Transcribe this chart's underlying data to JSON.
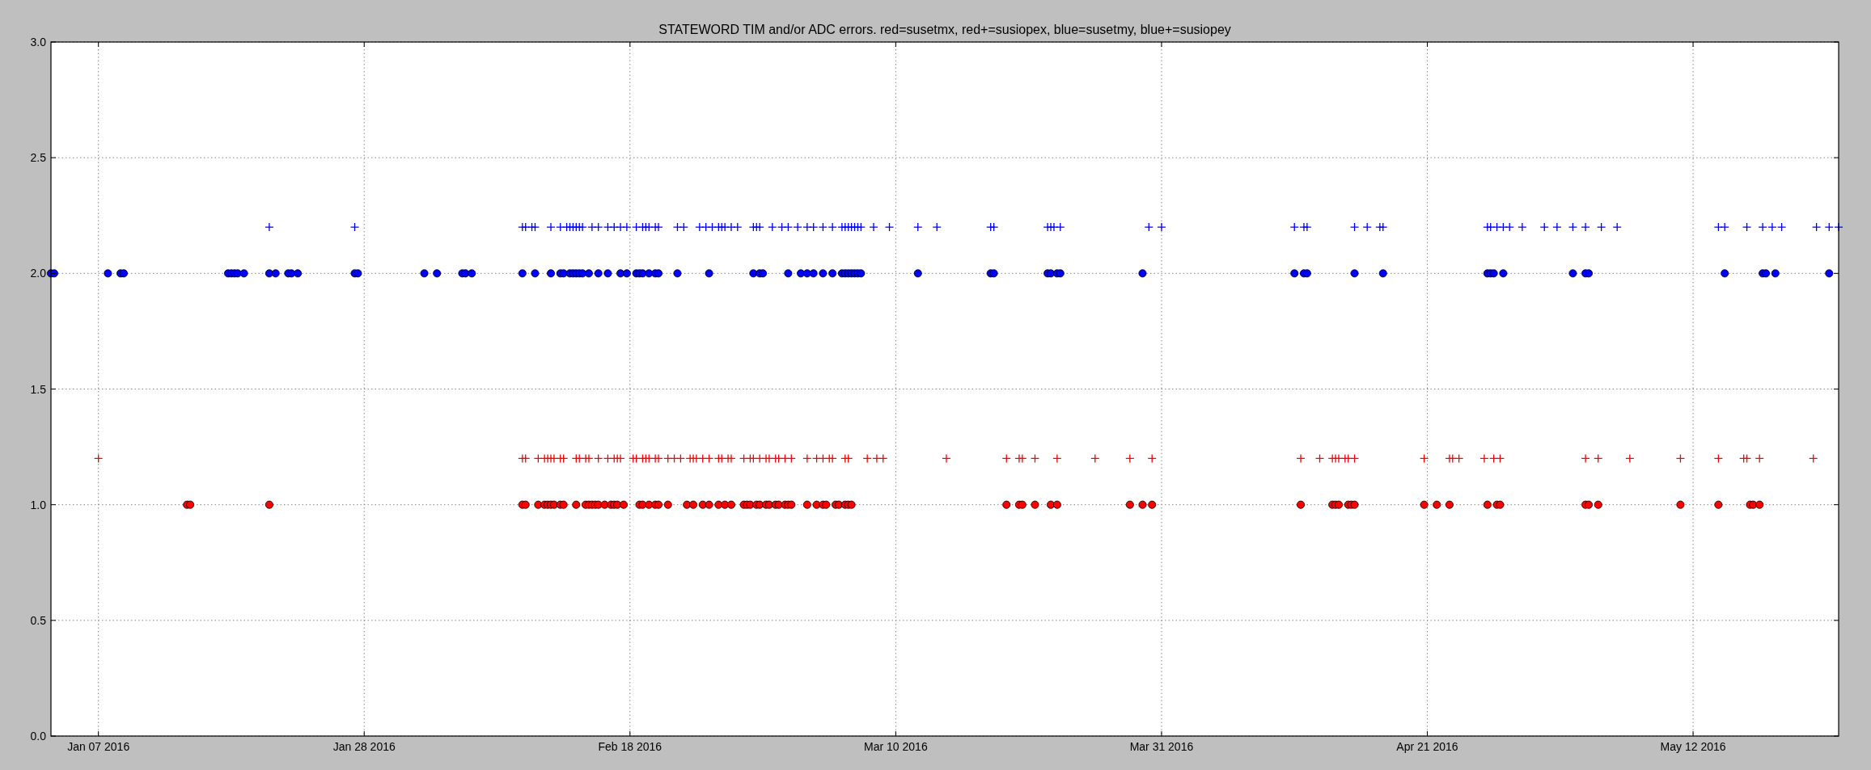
{
  "chart_data": {
    "type": "scatter",
    "title": "STATEWORD TIM and/or ADC errors. red=susetmx, red+=susiopex, blue=susetmy, blue+=susiopey",
    "xlim": [
      "2016-01-03T06:00",
      "2016-05-23T12:00"
    ],
    "xticks": [
      {
        "value": "2016-01-07",
        "label": "Jan 07 2016"
      },
      {
        "value": "2016-01-28",
        "label": "Jan 28 2016"
      },
      {
        "value": "2016-02-18",
        "label": "Feb 18 2016"
      },
      {
        "value": "2016-03-10",
        "label": "Mar 10 2016"
      },
      {
        "value": "2016-03-31",
        "label": "Mar 31 2016"
      },
      {
        "value": "2016-04-21",
        "label": "Apr 21 2016"
      },
      {
        "value": "2016-05-12",
        "label": "May 12 2016"
      }
    ],
    "ylim": [
      0,
      3
    ],
    "yticks": [
      {
        "value": 0,
        "label": "0.0"
      },
      {
        "value": 0.5,
        "label": "0.5"
      },
      {
        "value": 1,
        "label": "1.0"
      },
      {
        "value": 1.5,
        "label": "1.5"
      },
      {
        "value": 2,
        "label": "2.0"
      },
      {
        "value": 2.5,
        "label": "2.5"
      },
      {
        "value": 3,
        "label": "3.0"
      }
    ],
    "grid": true,
    "series": [
      {
        "color": "#ff0000",
        "marker": "circle",
        "x": [
          "2016-01-14T00:00",
          "2016-01-14T06:00",
          "2016-01-20T12:00",
          "2016-02-09T12:00",
          "2016-02-09T18:00",
          "2016-02-10T18:00",
          "2016-02-11T06:00",
          "2016-02-11T12:00",
          "2016-02-11T18:00",
          "2016-02-12T00:00",
          "2016-02-12T12:00",
          "2016-02-12T18:00",
          "2016-02-13T18:00",
          "2016-02-14T12:00",
          "2016-02-14T18:00",
          "2016-02-15T00:00",
          "2016-02-15T06:00",
          "2016-02-15T12:00",
          "2016-02-16T00:00",
          "2016-02-16T12:00",
          "2016-02-16T18:00",
          "2016-02-17T00:00",
          "2016-02-17T12:00",
          "2016-02-18T18:00",
          "2016-02-19T00:00",
          "2016-02-19T12:00",
          "2016-02-20T00:00",
          "2016-02-20T06:00",
          "2016-02-21T00:00",
          "2016-02-22T12:00",
          "2016-02-23T00:00",
          "2016-02-23T18:00",
          "2016-02-24T06:00",
          "2016-02-25T00:00",
          "2016-02-25T12:00",
          "2016-02-26T00:00",
          "2016-02-27T00:00",
          "2016-02-27T06:00",
          "2016-02-27T12:00",
          "2016-02-28T00:00",
          "2016-02-28T06:00",
          "2016-02-28T18:00",
          "2016-02-29T00:00",
          "2016-02-29T12:00",
          "2016-02-29T18:00",
          "2016-03-01T06:00",
          "2016-03-01T12:00",
          "2016-03-01T18:00",
          "2016-03-03T00:00",
          "2016-03-03T18:00",
          "2016-03-04T06:00",
          "2016-03-04T12:00",
          "2016-03-05T06:00",
          "2016-03-05T12:00",
          "2016-03-06T00:00",
          "2016-03-06T06:00",
          "2016-03-06T12:00",
          "2016-03-18T18:00",
          "2016-03-19T18:00",
          "2016-03-20T00:00",
          "2016-03-21T00:00",
          "2016-03-22T06:00",
          "2016-03-22T18:00",
          "2016-03-28T12:00",
          "2016-03-29T12:00",
          "2016-03-30T06:00",
          "2016-04-11T00:00",
          "2016-04-13T12:00",
          "2016-04-13T18:00",
          "2016-04-14T00:00",
          "2016-04-14T18:00",
          "2016-04-15T00:00",
          "2016-04-15T06:00",
          "2016-04-20T18:00",
          "2016-04-21T18:00",
          "2016-04-22T18:00",
          "2016-04-25T18:00",
          "2016-04-26T12:00",
          "2016-04-26T18:00",
          "2016-05-03T12:00",
          "2016-05-03T18:00",
          "2016-05-04T12:00",
          "2016-05-11T00:00",
          "2016-05-14T00:00",
          "2016-05-16T12:00",
          "2016-05-16T18:00",
          "2016-05-17T06:00"
        ],
        "values": [
          1,
          1,
          1,
          1,
          1,
          1,
          1,
          1,
          1,
          1,
          1,
          1,
          1,
          1,
          1,
          1,
          1,
          1,
          1,
          1,
          1,
          1,
          1,
          1,
          1,
          1,
          1,
          1,
          1,
          1,
          1,
          1,
          1,
          1,
          1,
          1,
          1,
          1,
          1,
          1,
          1,
          1,
          1,
          1,
          1,
          1,
          1,
          1,
          1,
          1,
          1,
          1,
          1,
          1,
          1,
          1,
          1,
          1,
          1,
          1,
          1,
          1,
          1,
          1,
          1,
          1,
          1,
          1,
          1,
          1,
          1,
          1,
          1,
          1,
          1,
          1,
          1,
          1,
          1,
          1,
          1,
          1,
          1,
          1,
          1,
          1,
          1
        ]
      },
      {
        "color": "#ff0000",
        "marker": "cross",
        "x": [
          "2016-01-07T00:00",
          "2016-02-09T12:00",
          "2016-02-09T18:00",
          "2016-02-10T18:00",
          "2016-02-11T06:00",
          "2016-02-11T12:00",
          "2016-02-11T18:00",
          "2016-02-12T00:00",
          "2016-02-12T12:00",
          "2016-02-12T18:00",
          "2016-02-13T18:00",
          "2016-02-14T00:00",
          "2016-02-14T12:00",
          "2016-02-14T18:00",
          "2016-02-15T12:00",
          "2016-02-16T06:00",
          "2016-02-16T18:00",
          "2016-02-17T00:00",
          "2016-02-17T06:00",
          "2016-02-18T06:00",
          "2016-02-18T12:00",
          "2016-02-19T00:00",
          "2016-02-19T06:00",
          "2016-02-19T12:00",
          "2016-02-20T00:00",
          "2016-02-20T06:00",
          "2016-02-21T00:00",
          "2016-02-21T12:00",
          "2016-02-22T00:00",
          "2016-02-22T18:00",
          "2016-02-23T00:00",
          "2016-02-23T06:00",
          "2016-02-23T18:00",
          "2016-02-24T06:00",
          "2016-02-25T00:00",
          "2016-02-25T06:00",
          "2016-02-25T18:00",
          "2016-02-26T00:00",
          "2016-02-27T00:00",
          "2016-02-27T12:00",
          "2016-02-27T18:00",
          "2016-02-28T06:00",
          "2016-02-28T18:00",
          "2016-02-29T00:00",
          "2016-02-29T12:00",
          "2016-02-29T18:00",
          "2016-03-01T06:00",
          "2016-03-01T18:00",
          "2016-03-03T00:00",
          "2016-03-03T18:00",
          "2016-03-04T06:00",
          "2016-03-04T18:00",
          "2016-03-05T00:00",
          "2016-03-06T00:00",
          "2016-03-06T06:00",
          "2016-03-07T18:00",
          "2016-03-08T12:00",
          "2016-03-09T00:00",
          "2016-03-14T00:00",
          "2016-03-18T18:00",
          "2016-03-19T18:00",
          "2016-03-20T00:00",
          "2016-03-21T00:00",
          "2016-03-22T18:00",
          "2016-03-25T18:00",
          "2016-03-28T12:00",
          "2016-03-30T06:00",
          "2016-04-11T00:00",
          "2016-04-12T12:00",
          "2016-04-13T12:00",
          "2016-04-13T18:00",
          "2016-04-14T00:00",
          "2016-04-14T12:00",
          "2016-04-14T18:00",
          "2016-04-15T06:00",
          "2016-04-20T18:00",
          "2016-04-22T18:00",
          "2016-04-23T00:00",
          "2016-04-23T12:00",
          "2016-04-25T12:00",
          "2016-04-26T06:00",
          "2016-04-26T18:00",
          "2016-05-03T12:00",
          "2016-05-04T12:00",
          "2016-05-07T00:00",
          "2016-05-11T00:00",
          "2016-05-14T00:00",
          "2016-05-16T00:00",
          "2016-05-16T06:00",
          "2016-05-17T06:00",
          "2016-05-21T12:00"
        ],
        "values": [
          1.2,
          1.2,
          1.2,
          1.2,
          1.2,
          1.2,
          1.2,
          1.2,
          1.2,
          1.2,
          1.2,
          1.2,
          1.2,
          1.2,
          1.2,
          1.2,
          1.2,
          1.2,
          1.2,
          1.2,
          1.2,
          1.2,
          1.2,
          1.2,
          1.2,
          1.2,
          1.2,
          1.2,
          1.2,
          1.2,
          1.2,
          1.2,
          1.2,
          1.2,
          1.2,
          1.2,
          1.2,
          1.2,
          1.2,
          1.2,
          1.2,
          1.2,
          1.2,
          1.2,
          1.2,
          1.2,
          1.2,
          1.2,
          1.2,
          1.2,
          1.2,
          1.2,
          1.2,
          1.2,
          1.2,
          1.2,
          1.2,
          1.2,
          1.2,
          1.2,
          1.2,
          1.2,
          1.2,
          1.2,
          1.2,
          1.2,
          1.2,
          1.2,
          1.2,
          1.2,
          1.2,
          1.2,
          1.2,
          1.2,
          1.2,
          1.2,
          1.2,
          1.2,
          1.2,
          1.2,
          1.2,
          1.2,
          1.2,
          1.2,
          1.2,
          1.2,
          1.2,
          1.2,
          1.2,
          1.2,
          1.2
        ]
      },
      {
        "color": "#0000ff",
        "marker": "circle",
        "x": [
          "2016-01-03T06:00",
          "2016-01-03T12:00",
          "2016-01-07T18:00",
          "2016-01-08T18:00",
          "2016-01-09T00:00",
          "2016-01-17T06:00",
          "2016-01-17T12:00",
          "2016-01-17T18:00",
          "2016-01-18T00:00",
          "2016-01-18T12:00",
          "2016-01-20T12:00",
          "2016-01-21T00:00",
          "2016-01-22T00:00",
          "2016-01-22T06:00",
          "2016-01-22T18:00",
          "2016-01-27T06:00",
          "2016-01-27T12:00",
          "2016-02-01T18:00",
          "2016-02-02T18:00",
          "2016-02-04T18:00",
          "2016-02-05T00:00",
          "2016-02-05T12:00",
          "2016-02-09T12:00",
          "2016-02-10T12:00",
          "2016-02-11T18:00",
          "2016-02-12T12:00",
          "2016-02-12T18:00",
          "2016-02-13T06:00",
          "2016-02-13T12:00",
          "2016-02-13T18:00",
          "2016-02-14T00:00",
          "2016-02-14T06:00",
          "2016-02-14T18:00",
          "2016-02-15T12:00",
          "2016-02-16T06:00",
          "2016-02-17T06:00",
          "2016-02-17T18:00",
          "2016-02-18T12:00",
          "2016-02-18T18:00",
          "2016-02-19T00:00",
          "2016-02-19T12:00",
          "2016-02-20T00:00",
          "2016-02-20T06:00",
          "2016-02-21T18:00",
          "2016-02-24T06:00",
          "2016-02-27T18:00",
          "2016-02-28T06:00",
          "2016-02-28T12:00",
          "2016-03-01T12:00",
          "2016-03-02T12:00",
          "2016-03-03T00:00",
          "2016-03-03T12:00",
          "2016-03-04T06:00",
          "2016-03-05T00:00",
          "2016-03-05T18:00",
          "2016-03-06T00:00",
          "2016-03-06T06:00",
          "2016-03-06T12:00",
          "2016-03-06T18:00",
          "2016-03-07T00:00",
          "2016-03-07T06:00",
          "2016-03-11T18:00",
          "2016-03-17T12:00",
          "2016-03-17T18:00",
          "2016-03-22T00:00",
          "2016-03-22T06:00",
          "2016-03-22T18:00",
          "2016-03-23T00:00",
          "2016-03-29T12:00",
          "2016-04-10T12:00",
          "2016-04-11T06:00",
          "2016-04-11T12:00",
          "2016-04-15T06:00",
          "2016-04-17T12:00",
          "2016-04-25T18:00",
          "2016-04-26T00:00",
          "2016-04-26T06:00",
          "2016-04-27T00:00",
          "2016-05-02T12:00",
          "2016-05-03T12:00",
          "2016-05-03T18:00",
          "2016-05-14T12:00",
          "2016-05-17T12:00",
          "2016-05-17T18:00",
          "2016-05-18T12:00",
          "2016-05-22T18:00"
        ],
        "values": [
          2,
          2,
          2,
          2,
          2,
          2,
          2,
          2,
          2,
          2,
          2,
          2,
          2,
          2,
          2,
          2,
          2,
          2,
          2,
          2,
          2,
          2,
          2,
          2,
          2,
          2,
          2,
          2,
          2,
          2,
          2,
          2,
          2,
          2,
          2,
          2,
          2,
          2,
          2,
          2,
          2,
          2,
          2,
          2,
          2,
          2,
          2,
          2,
          2,
          2,
          2,
          2,
          2,
          2,
          2,
          2,
          2,
          2,
          2,
          2,
          2,
          2,
          2,
          2,
          2,
          2,
          2,
          2,
          2,
          2,
          2,
          2,
          2,
          2,
          2,
          2,
          2,
          2,
          2,
          2,
          2,
          2,
          2,
          2,
          2,
          2
        ]
      },
      {
        "color": "#0000ff",
        "marker": "cross",
        "x": [
          "2016-01-20T12:00",
          "2016-01-27T06:00",
          "2016-02-09T12:00",
          "2016-02-09T18:00",
          "2016-02-10T06:00",
          "2016-02-10T12:00",
          "2016-02-11T18:00",
          "2016-02-12T12:00",
          "2016-02-13T00:00",
          "2016-02-13T06:00",
          "2016-02-13T12:00",
          "2016-02-13T18:00",
          "2016-02-14T00:00",
          "2016-02-14T06:00",
          "2016-02-15T00:00",
          "2016-02-15T12:00",
          "2016-02-16T06:00",
          "2016-02-16T18:00",
          "2016-02-17T06:00",
          "2016-02-17T18:00",
          "2016-02-18T12:00",
          "2016-02-19T00:00",
          "2016-02-19T06:00",
          "2016-02-19T12:00",
          "2016-02-20T00:00",
          "2016-02-20T06:00",
          "2016-02-21T18:00",
          "2016-02-22T06:00",
          "2016-02-23T12:00",
          "2016-02-24T00:00",
          "2016-02-24T12:00",
          "2016-02-25T00:00",
          "2016-02-25T06:00",
          "2016-02-25T12:00",
          "2016-02-26T00:00",
          "2016-02-26T12:00",
          "2016-02-27T18:00",
          "2016-02-28T00:00",
          "2016-02-28T06:00",
          "2016-02-29T06:00",
          "2016-03-01T00:00",
          "2016-03-01T12:00",
          "2016-03-02T06:00",
          "2016-03-03T00:00",
          "2016-03-03T12:00",
          "2016-03-04T06:00",
          "2016-03-05T00:00",
          "2016-03-05T18:00",
          "2016-03-06T00:00",
          "2016-03-06T06:00",
          "2016-03-06T12:00",
          "2016-03-06T18:00",
          "2016-03-07T00:00",
          "2016-03-07T06:00",
          "2016-03-08T06:00",
          "2016-03-09T12:00",
          "2016-03-11T18:00",
          "2016-03-13T06:00",
          "2016-03-17T12:00",
          "2016-03-17T18:00",
          "2016-03-22T00:00",
          "2016-03-22T06:00",
          "2016-03-22T12:00",
          "2016-03-23T00:00",
          "2016-03-30T00:00",
          "2016-03-31T00:00",
          "2016-04-10T12:00",
          "2016-04-11T06:00",
          "2016-04-11T12:00",
          "2016-04-15T06:00",
          "2016-04-16T06:00",
          "2016-04-17T06:00",
          "2016-04-17T12:00",
          "2016-04-25T18:00",
          "2016-04-26T00:00",
          "2016-04-26T12:00",
          "2016-04-27T00:00",
          "2016-04-27T12:00",
          "2016-04-28T12:00",
          "2016-04-30T06:00",
          "2016-05-01T06:00",
          "2016-05-02T12:00",
          "2016-05-03T12:00",
          "2016-05-04T18:00",
          "2016-05-06T00:00",
          "2016-05-14T00:00",
          "2016-05-14T12:00",
          "2016-05-16T06:00",
          "2016-05-17T12:00",
          "2016-05-18T06:00",
          "2016-05-19T00:00",
          "2016-05-21T18:00",
          "2016-05-22T18:00",
          "2016-05-23T12:00"
        ],
        "values": [
          2.2,
          2.2,
          2.2,
          2.2,
          2.2,
          2.2,
          2.2,
          2.2,
          2.2,
          2.2,
          2.2,
          2.2,
          2.2,
          2.2,
          2.2,
          2.2,
          2.2,
          2.2,
          2.2,
          2.2,
          2.2,
          2.2,
          2.2,
          2.2,
          2.2,
          2.2,
          2.2,
          2.2,
          2.2,
          2.2,
          2.2,
          2.2,
          2.2,
          2.2,
          2.2,
          2.2,
          2.2,
          2.2,
          2.2,
          2.2,
          2.2,
          2.2,
          2.2,
          2.2,
          2.2,
          2.2,
          2.2,
          2.2,
          2.2,
          2.2,
          2.2,
          2.2,
          2.2,
          2.2,
          2.2,
          2.2,
          2.2,
          2.2,
          2.2,
          2.2,
          2.2,
          2.2,
          2.2,
          2.2,
          2.2,
          2.2,
          2.2,
          2.2,
          2.2,
          2.2,
          2.2,
          2.2,
          2.2,
          2.2,
          2.2,
          2.2,
          2.2,
          2.2,
          2.2,
          2.2,
          2.2,
          2.2,
          2.2,
          2.2,
          2.2,
          2.2,
          2.2,
          2.2,
          2.2,
          2.2,
          2.2,
          2.2,
          2.2,
          2.2
        ]
      }
    ]
  }
}
